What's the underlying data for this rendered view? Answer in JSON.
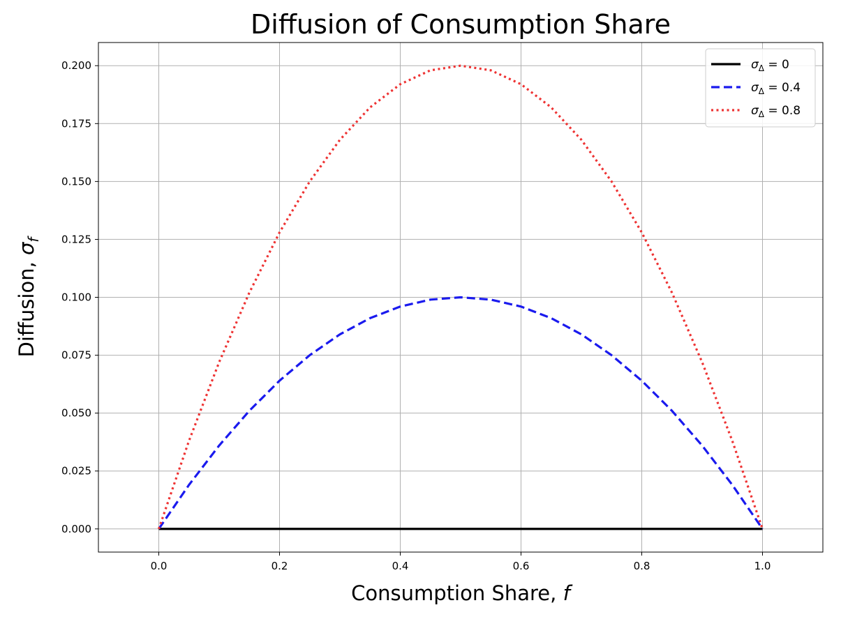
{
  "chart_data": {
    "type": "line",
    "title": "Diffusion of Consumption Share",
    "xlabel": "Consumption Share, f",
    "ylabel": "Diffusion, σf",
    "xlim": [
      -0.1,
      1.1
    ],
    "ylim": [
      -0.01,
      0.21
    ],
    "x_ticks": [
      "0.0",
      "0.2",
      "0.4",
      "0.6",
      "0.8",
      "1.0"
    ],
    "y_ticks": [
      "0.000",
      "0.025",
      "0.050",
      "0.075",
      "0.100",
      "0.125",
      "0.150",
      "0.175",
      "0.200"
    ],
    "grid": true,
    "legend_position": "top-right",
    "x": [
      0.0,
      0.05,
      0.1,
      0.15,
      0.2,
      0.25,
      0.3,
      0.35,
      0.4,
      0.45,
      0.5,
      0.55,
      0.6,
      0.65,
      0.7,
      0.75,
      0.8,
      0.85,
      0.9,
      0.95,
      1.0
    ],
    "series": [
      {
        "name": "σΔ = 0",
        "label_main": "σ",
        "label_sub": "Δ",
        "label_value": " = 0",
        "color": "#000000",
        "style": "solid",
        "values": [
          0,
          0,
          0,
          0,
          0,
          0,
          0,
          0,
          0,
          0,
          0,
          0,
          0,
          0,
          0,
          0,
          0,
          0,
          0,
          0,
          0
        ]
      },
      {
        "name": "σΔ = 0.4",
        "label_main": "σ",
        "label_sub": "Δ",
        "label_value": " = 0.4",
        "color": "#1a1aee",
        "style": "dashed",
        "values": [
          0,
          0.019,
          0.036,
          0.051,
          0.064,
          0.075,
          0.084,
          0.091,
          0.096,
          0.099,
          0.1,
          0.099,
          0.096,
          0.091,
          0.084,
          0.075,
          0.064,
          0.051,
          0.036,
          0.019,
          0
        ]
      },
      {
        "name": "σΔ = 0.8",
        "label_main": "σ",
        "label_sub": "Δ",
        "label_value": " = 0.8",
        "color": "#ee3333",
        "style": "dotted",
        "values": [
          0,
          0.038,
          0.072,
          0.102,
          0.128,
          0.15,
          0.168,
          0.182,
          0.192,
          0.198,
          0.2,
          0.198,
          0.192,
          0.182,
          0.168,
          0.15,
          0.128,
          0.102,
          0.072,
          0.038,
          0
        ]
      }
    ]
  }
}
